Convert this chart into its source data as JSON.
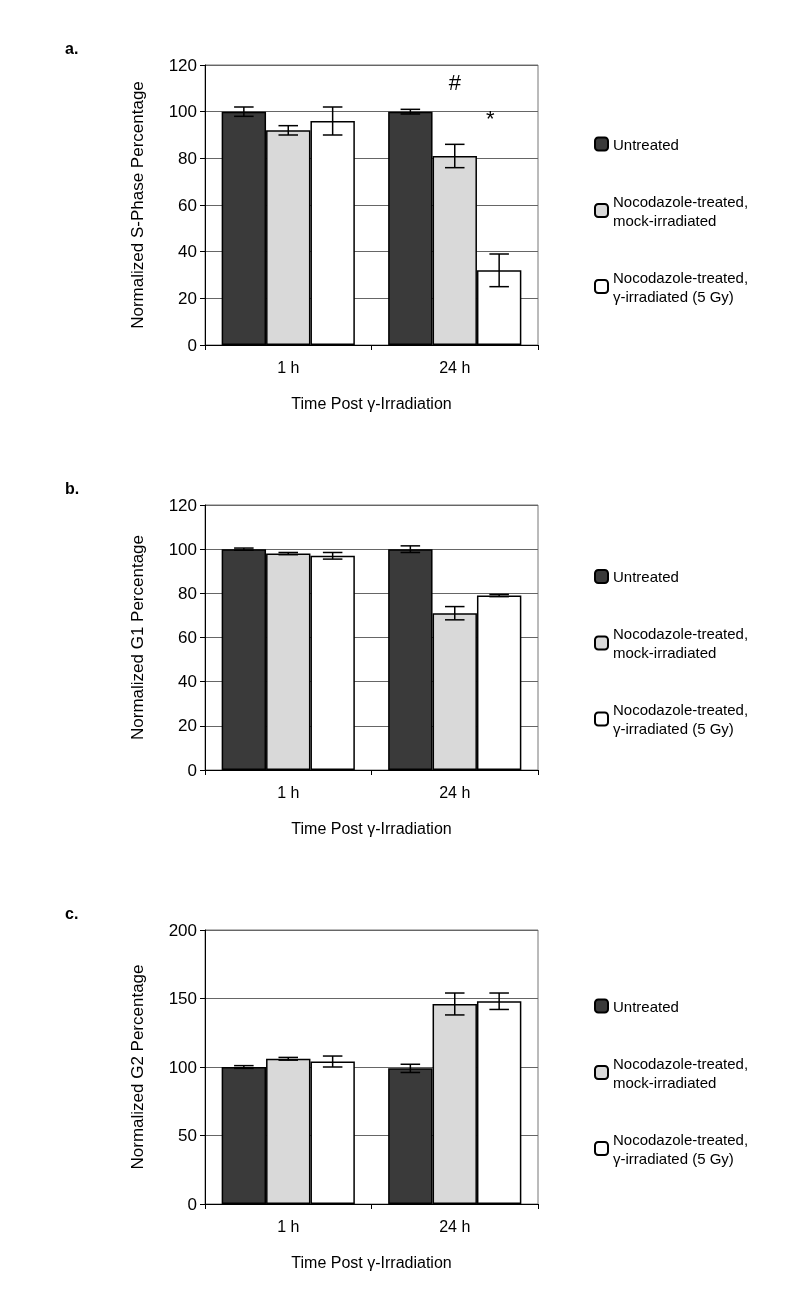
{
  "chart_data": [
    {
      "type": "bar",
      "title": "a.",
      "xlabel": "Time Post γ-Irradiation",
      "ylabel": "Normalized S-Phase Percentage",
      "categories": [
        "1 h",
        "24 h"
      ],
      "ylim": [
        0,
        120
      ],
      "yticks": [
        0,
        20,
        40,
        60,
        80,
        100,
        120
      ],
      "grid": "y",
      "legend": "right",
      "series": [
        {
          "name": "Untreated",
          "color": "#3a3a3a",
          "values": [
            100,
            100
          ],
          "errors": [
            2,
            1
          ]
        },
        {
          "name": "Nocodazole-treated, mock-irradiated",
          "color": "#d9d9d9",
          "values": [
            92,
            81
          ],
          "errors": [
            2,
            5
          ]
        },
        {
          "name": "Nocodazole-treated, γ-irradiated (5 Gy)",
          "color": "#ffffff",
          "values": [
            96,
            32
          ],
          "errors": [
            6,
            7
          ]
        }
      ],
      "annotations": [
        "#",
        "*"
      ]
    },
    {
      "type": "bar",
      "title": "b.",
      "xlabel": "Time Post γ-Irradiation",
      "ylabel": "Normalized G1 Percentage",
      "categories": [
        "1 h",
        "24 h"
      ],
      "ylim": [
        0,
        120
      ],
      "yticks": [
        0,
        20,
        40,
        60,
        80,
        100,
        120
      ],
      "grid": "y",
      "legend": "right",
      "series": [
        {
          "name": "Untreated",
          "color": "#3a3a3a",
          "values": [
            100,
            100
          ],
          "errors": [
            0.5,
            1.5
          ]
        },
        {
          "name": "Nocodazole-treated, mock-irradiated",
          "color": "#d9d9d9",
          "values": [
            98,
            71
          ],
          "errors": [
            0.5,
            3
          ]
        },
        {
          "name": "Nocodazole-treated, γ-irradiated (5 Gy)",
          "color": "#ffffff",
          "values": [
            97,
            79
          ],
          "errors": [
            1.5,
            0.5
          ]
        }
      ]
    },
    {
      "type": "bar",
      "title": "c.",
      "xlabel": "Time Post γ-Irradiation",
      "ylabel": "Normalized G2 Percentage",
      "categories": [
        "1 h",
        "24 h"
      ],
      "ylim": [
        0,
        200
      ],
      "yticks": [
        0,
        50,
        100,
        150,
        200
      ],
      "grid": "y",
      "legend": "right",
      "series": [
        {
          "name": "Untreated",
          "color": "#3a3a3a",
          "values": [
            100,
            99
          ],
          "errors": [
            1,
            3
          ]
        },
        {
          "name": "Nocodazole-treated, mock-irradiated",
          "color": "#d9d9d9",
          "values": [
            106,
            146
          ],
          "errors": [
            1,
            8
          ]
        },
        {
          "name": "Nocodazole-treated, γ-irradiated (5 Gy)",
          "color": "#ffffff",
          "values": [
            104,
            148
          ],
          "errors": [
            4,
            6
          ]
        }
      ]
    }
  ]
}
